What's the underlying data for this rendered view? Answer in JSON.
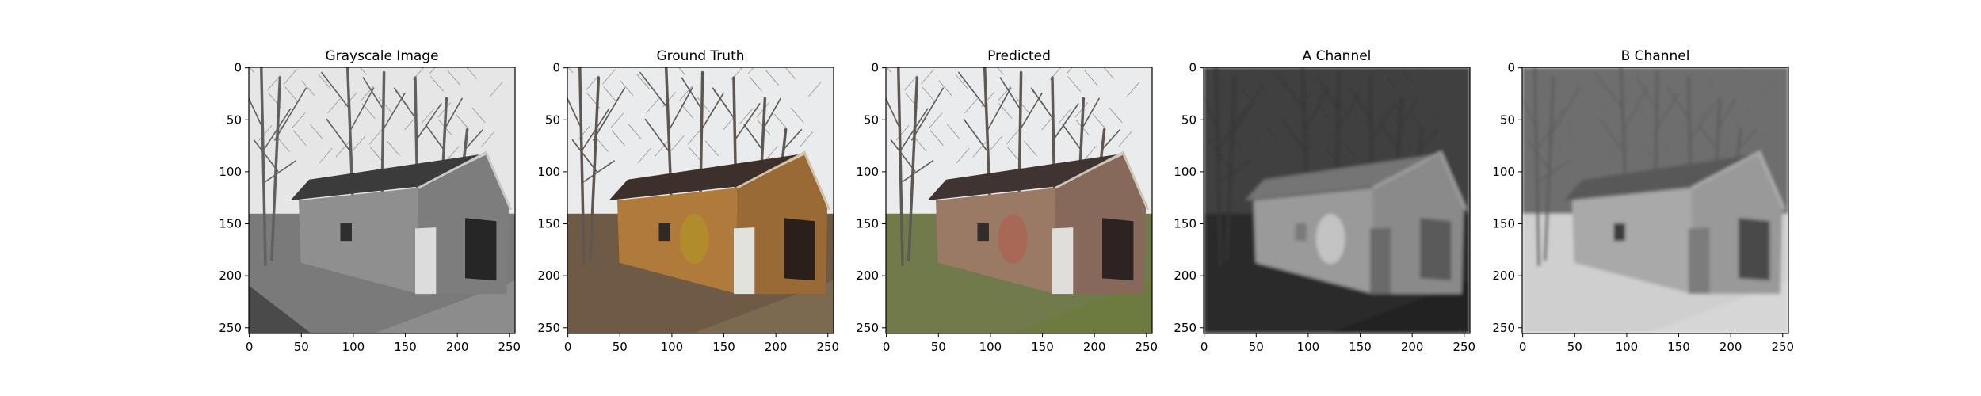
{
  "panels": [
    {
      "title": "Grayscale Image",
      "image": {
        "kind": "grayscale photo",
        "sky": "#e6e6e6",
        "trees": "#606060",
        "ground": "#7a7a7a",
        "grass": "#8c8c8c",
        "wall": "#8f8f8f",
        "wall_side": "#7d7d7d",
        "roof": "#3b3b3b",
        "trim": "#c8c8c8",
        "door": "#dcdcdc",
        "opening": "#262626",
        "window": "#2e2e2e"
      }
    },
    {
      "title": "Ground Truth",
      "image": {
        "kind": "color photo",
        "sky": "#e9ebec",
        "trees": "#5e5650",
        "ground": "#6e5a45",
        "grass": "#7b6a4f",
        "wall": "#b07a3a",
        "wall_side": "#9a6a36",
        "roof": "#3d302b",
        "trim": "#d2c2a8",
        "door": "#e2e2dd",
        "opening": "#2a1f1a",
        "window": "#2f2a25",
        "accent": "#b39a22"
      }
    },
    {
      "title": "Predicted",
      "image": {
        "kind": "color photo",
        "sky": "#e9ebec",
        "trees": "#5f5955",
        "ground": "#707a4a",
        "grass": "#6d7a40",
        "wall": "#9a7a64",
        "wall_side": "#86695a",
        "roof": "#3f3431",
        "trim": "#cfc3b6",
        "door": "#e0dedb",
        "opening": "#2b2422",
        "window": "#332c2a",
        "accent": "#b35a4a"
      }
    },
    {
      "title": "A Channel",
      "image": {
        "kind": "channel map",
        "sky": "#3f3f3f",
        "trees": "#353535",
        "ground": "#2b2b2b",
        "grass": "#232323",
        "wall": "#9a9a9a",
        "wall_side": "#8a8a8a",
        "roof": "#747474",
        "trim": "#a8a8a8",
        "door": "#6a6a6a",
        "opening": "#5a5a5a",
        "window": "#7a7a7a",
        "accent": "#e6e6e6"
      }
    },
    {
      "title": "B Channel",
      "image": {
        "kind": "channel map",
        "sky": "#6e6e6e",
        "trees": "#5c5c5c",
        "ground": "#cfcfcf",
        "grass": "#d6d6d6",
        "wall": "#a9a9a9",
        "wall_side": "#999999",
        "roof": "#595959",
        "trim": "#b8b8b8",
        "door": "#7c7c7c",
        "opening": "#4a4a4a",
        "window": "#3a3a3a"
      }
    }
  ],
  "x_ticks": [
    "0",
    "50",
    "100",
    "150",
    "200",
    "250"
  ],
  "y_ticks": [
    "0",
    "50",
    "100",
    "150",
    "200",
    "250"
  ]
}
